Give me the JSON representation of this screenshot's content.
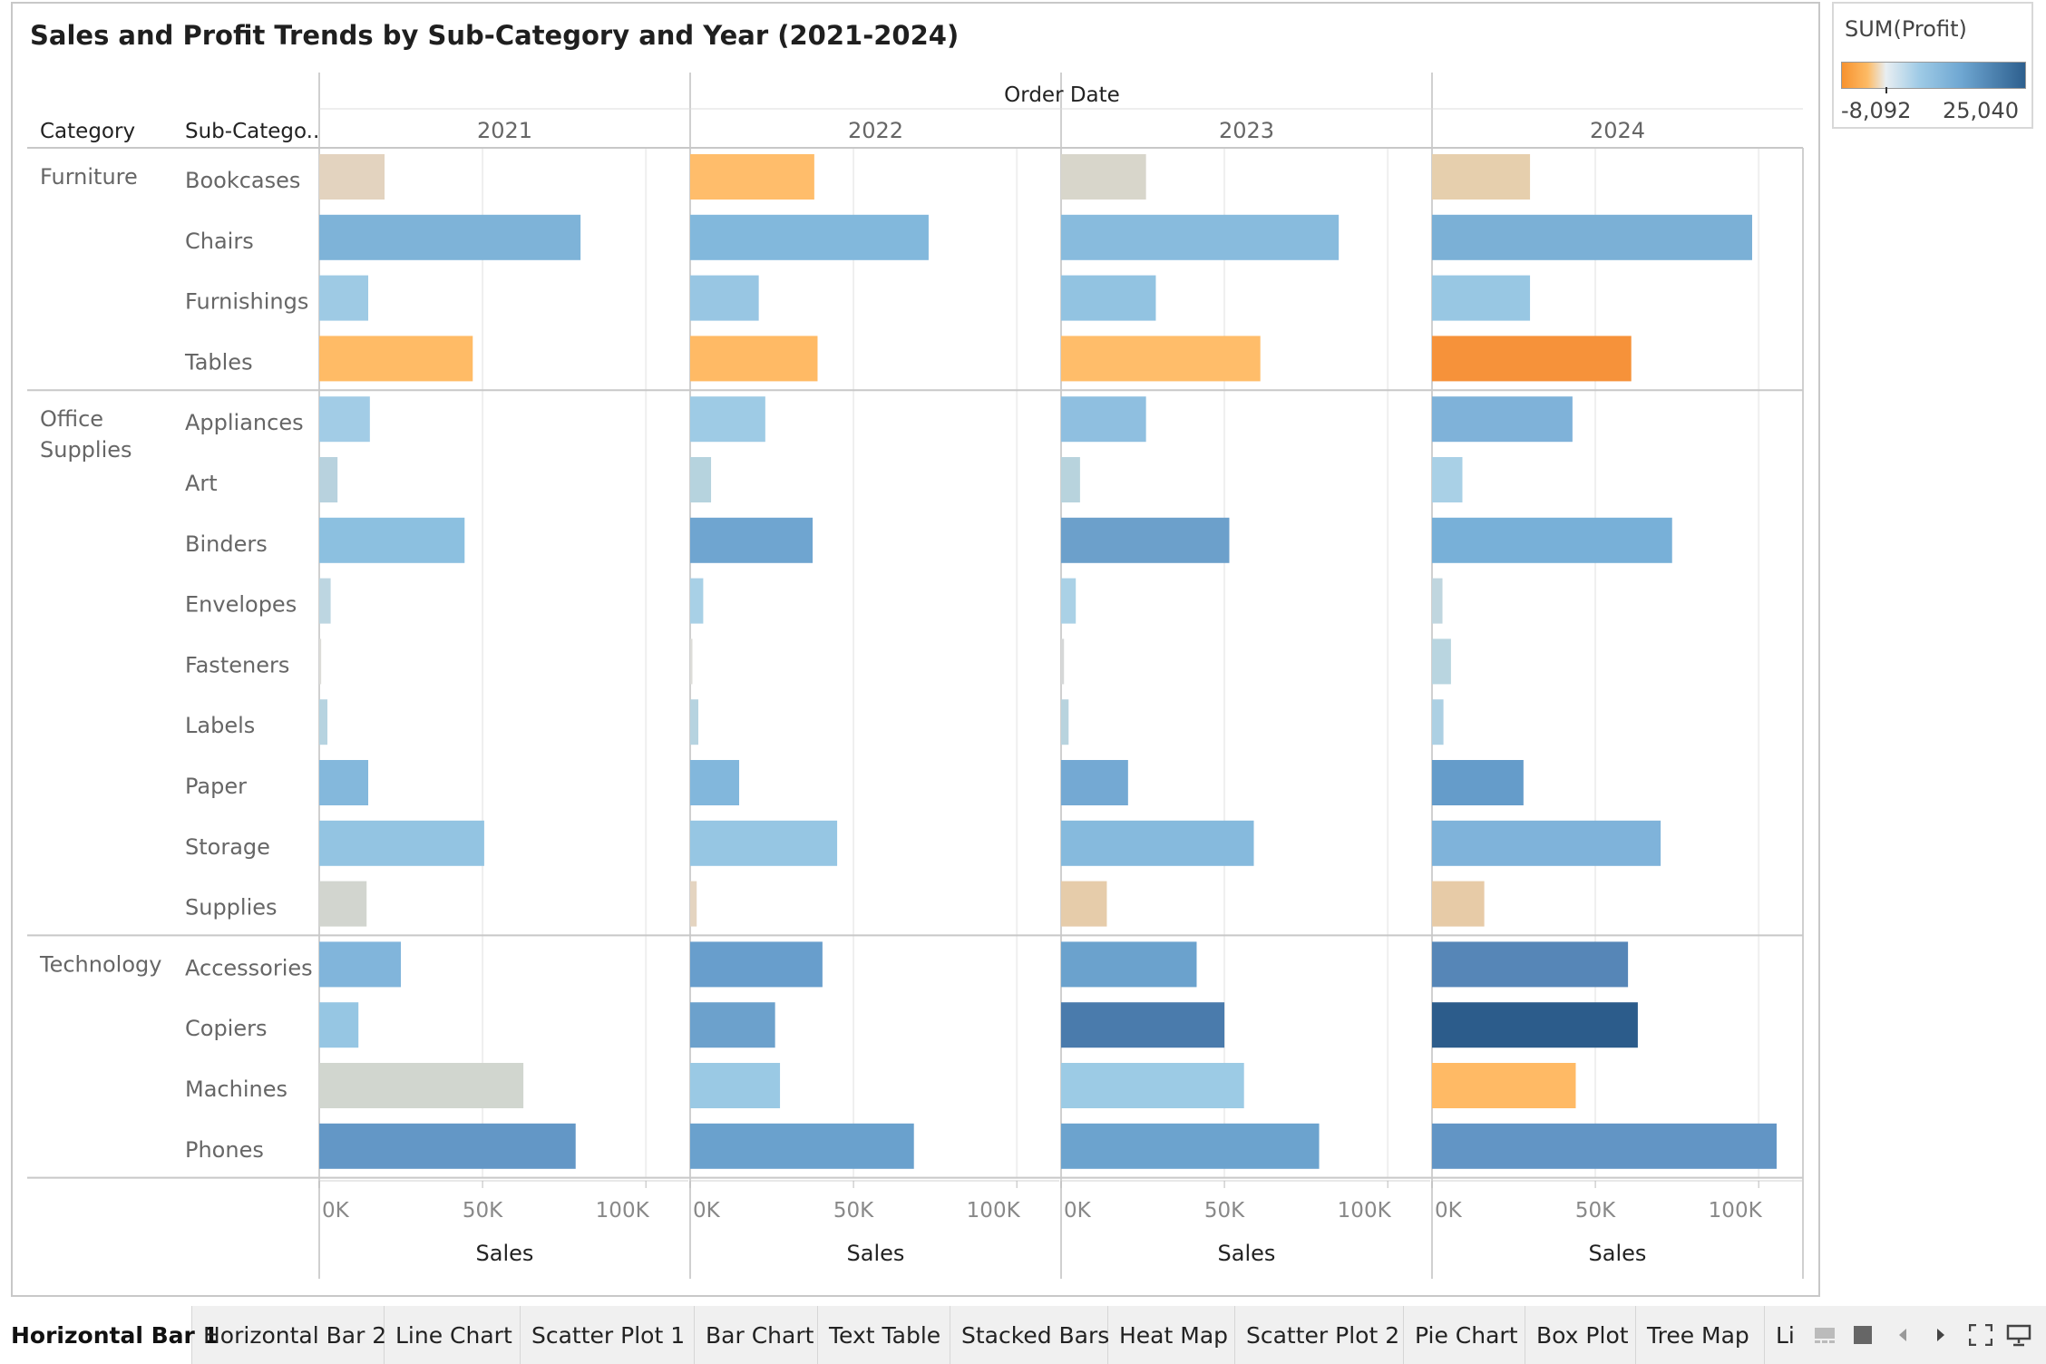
{
  "title": "Sales and Profit Trends by Sub-Category and Year (2021-2024)",
  "headers": {
    "category": "Category",
    "subcategory": "Sub-Catego..",
    "column_group": "Order Date",
    "x_axis_label": "Sales",
    "tick_labels": [
      "0K",
      "50K",
      "100K"
    ]
  },
  "legend": {
    "title": "SUM(Profit)",
    "min_label": "-8,092",
    "max_label": "25,040",
    "min": -8092,
    "max": 25040
  },
  "chart_data": {
    "type": "bar",
    "orientation": "horizontal",
    "title": "Sales and Profit Trends by Sub-Category and Year (2021-2024)",
    "xlabel": "Sales",
    "xlim": [
      0,
      100000
    ],
    "color_measure": "SUM(Profit)",
    "grid": true,
    "legend_position": "top-right",
    "years": [
      "2021",
      "2022",
      "2023",
      "2024"
    ],
    "groups": [
      {
        "category": "Furniture",
        "subcategories": [
          {
            "name": "Bookcases",
            "sales": [
              20000,
              38000,
              26000,
              30000
            ],
            "profit": [
              -1000,
              -2500,
              200,
              -1200
            ],
            "colors": [
              "#e3d3bf",
              "#ffbd6b",
              "#d8d6cb",
              "#e6cfad"
            ]
          },
          {
            "name": "Chairs",
            "sales": [
              80000,
              73000,
              85000,
              98000
            ],
            "profit": [
              8000,
              7000,
              6500,
              9000
            ],
            "colors": [
              "#7eb3d8",
              "#82b8dc",
              "#88bbdd",
              "#7bb0d6"
            ]
          },
          {
            "name": "Furnishings",
            "sales": [
              15000,
              21000,
              29000,
              30000
            ],
            "profit": [
              2500,
              2800,
              3200,
              3500
            ],
            "colors": [
              "#9ecae4",
              "#98c6e3",
              "#92c3e1",
              "#98c7e3"
            ]
          },
          {
            "name": "Tables",
            "sales": [
              47000,
              39000,
              61000,
              61000
            ],
            "profit": [
              -3000,
              -3000,
              -3500,
              -8092
            ],
            "colors": [
              "#ffbb66",
              "#ffba65",
              "#ffbd6a",
              "#f6923a"
            ]
          }
        ]
      },
      {
        "category": "Office Supplies",
        "subcategories": [
          {
            "name": "Appliances",
            "sales": [
              15500,
              23000,
              26000,
              43000
            ],
            "profit": [
              2000,
              3000,
              4000,
              8500
            ],
            "colors": [
              "#a2cce6",
              "#9ecbe5",
              "#8fbfe0",
              "#7fb2d9"
            ]
          },
          {
            "name": "Art",
            "sales": [
              5600,
              6400,
              5800,
              9300
            ],
            "profit": [
              1100,
              1500,
              1300,
              2000
            ],
            "colors": [
              "#b8d2de",
              "#b6d3de",
              "#b8d3dd",
              "#a9d0e6"
            ]
          },
          {
            "name": "Binders",
            "sales": [
              44500,
              37500,
              51500,
              73500
            ],
            "profit": [
              4000,
              9000,
              14000,
              10000
            ],
            "colors": [
              "#8cc0e0",
              "#6fa5d0",
              "#6ca0cb",
              "#78b0d8"
            ]
          },
          {
            "name": "Envelopes",
            "sales": [
              3500,
              4000,
              4500,
              3200
            ],
            "profit": [
              700,
              1000,
              1300,
              900
            ],
            "colors": [
              "#bdd6e1",
              "#a8d0e6",
              "#aad1e6",
              "#c0d6df"
            ]
          },
          {
            "name": "Fasteners",
            "sales": [
              600,
              700,
              900,
              5800
            ],
            "profit": [
              100,
              150,
              200,
              900
            ],
            "colors": [
              "#dcdcd8",
              "#dcdcd8",
              "#d6d8d8",
              "#b9d5e0"
            ]
          },
          {
            "name": "Labels",
            "sales": [
              2500,
              2500,
              2300,
              3500
            ],
            "profit": [
              800,
              900,
              900,
              1200
            ],
            "colors": [
              "#b6d3e0",
              "#b6d3e0",
              "#b8d3de",
              "#add0e3"
            ]
          },
          {
            "name": "Paper",
            "sales": [
              15000,
              15000,
              20500,
              28000
            ],
            "profit": [
              5000,
              5500,
              8500,
              12000
            ],
            "colors": [
              "#84b8dc",
              "#82b7dc",
              "#74a9d3",
              "#659cca"
            ]
          },
          {
            "name": "Storage",
            "sales": [
              50500,
              45000,
              59000,
              70000
            ],
            "profit": [
              4000,
              3500,
              6500,
              6500
            ],
            "colors": [
              "#93c4e2",
              "#96c6e3",
              "#86badd",
              "#7fb3da"
            ]
          },
          {
            "name": "Supplies",
            "sales": [
              14500,
              2000,
              14000,
              16000
            ],
            "profit": [
              -300,
              -200,
              -1000,
              -1200
            ],
            "colors": [
              "#d2d5cf",
              "#e4d4c0",
              "#e6ccaa",
              "#e7cba7"
            ]
          }
        ]
      },
      {
        "category": "Technology",
        "subcategories": [
          {
            "name": "Accessories",
            "sales": [
              25000,
              40500,
              41500,
              60000
            ],
            "profit": [
              5000,
              9000,
              10000,
              15000
            ],
            "colors": [
              "#81b5db",
              "#689ecc",
              "#6ba2cd",
              "#5686b7"
            ]
          },
          {
            "name": "Copiers",
            "sales": [
              12000,
              26000,
              50000,
              63000
            ],
            "profit": [
              3500,
              9000,
              18000,
              25040
            ],
            "colors": [
              "#96c6e3",
              "#6ca1cc",
              "#4a7bac",
              "#2c5c8b"
            ]
          },
          {
            "name": "Machines",
            "sales": [
              62500,
              27500,
              56000,
              44000
            ],
            "profit": [
              0,
              2500,
              2200,
              -4000
            ],
            "colors": [
              "#d1d6cf",
              "#9ac9e4",
              "#9ccbe5",
              "#ffba65"
            ]
          },
          {
            "name": "Phones",
            "sales": [
              78500,
              68500,
              79000,
              105500
            ],
            "profit": [
              13000,
              10000,
              11000,
              12000
            ],
            "colors": [
              "#6397c6",
              "#6aa1cd",
              "#6ca3ce",
              "#6295c5"
            ]
          }
        ]
      }
    ]
  },
  "tabs": [
    "Horizontal Bar 1",
    "Horizontal Bar 2",
    "Line Chart",
    "Scatter Plot 1",
    "Bar Chart",
    "Text Table",
    "Stacked Bars",
    "Heat Map",
    "Scatter Plot 2",
    "Pie Chart",
    "Box Plot",
    "Tree Map",
    "Li"
  ]
}
